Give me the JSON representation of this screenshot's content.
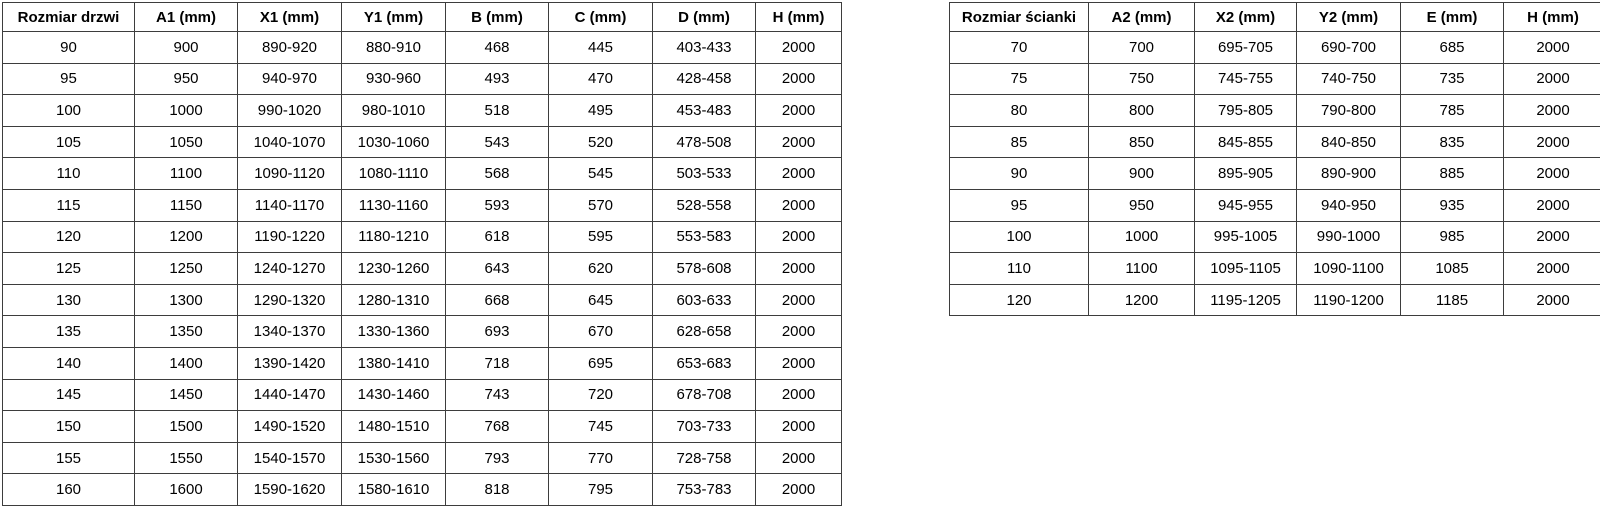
{
  "colors": {
    "background": "#ffffff",
    "border": "#3d3d3d",
    "text": "#000000"
  },
  "door_table": {
    "columns": [
      "Rozmiar drzwi",
      "A1 (mm)",
      "X1 (mm)",
      "Y1 (mm)",
      "B (mm)",
      "C (mm)",
      "D (mm)",
      "H (mm)"
    ],
    "rows": [
      [
        "90",
        "900",
        "890-920",
        "880-910",
        "468",
        "445",
        "403-433",
        "2000"
      ],
      [
        "95",
        "950",
        "940-970",
        "930-960",
        "493",
        "470",
        "428-458",
        "2000"
      ],
      [
        "100",
        "1000",
        "990-1020",
        "980-1010",
        "518",
        "495",
        "453-483",
        "2000"
      ],
      [
        "105",
        "1050",
        "1040-1070",
        "1030-1060",
        "543",
        "520",
        "478-508",
        "2000"
      ],
      [
        "110",
        "1100",
        "1090-1120",
        "1080-1110",
        "568",
        "545",
        "503-533",
        "2000"
      ],
      [
        "115",
        "1150",
        "1140-1170",
        "1130-1160",
        "593",
        "570",
        "528-558",
        "2000"
      ],
      [
        "120",
        "1200",
        "1190-1220",
        "1180-1210",
        "618",
        "595",
        "553-583",
        "2000"
      ],
      [
        "125",
        "1250",
        "1240-1270",
        "1230-1260",
        "643",
        "620",
        "578-608",
        "2000"
      ],
      [
        "130",
        "1300",
        "1290-1320",
        "1280-1310",
        "668",
        "645",
        "603-633",
        "2000"
      ],
      [
        "135",
        "1350",
        "1340-1370",
        "1330-1360",
        "693",
        "670",
        "628-658",
        "2000"
      ],
      [
        "140",
        "1400",
        "1390-1420",
        "1380-1410",
        "718",
        "695",
        "653-683",
        "2000"
      ],
      [
        "145",
        "1450",
        "1440-1470",
        "1430-1460",
        "743",
        "720",
        "678-708",
        "2000"
      ],
      [
        "150",
        "1500",
        "1490-1520",
        "1480-1510",
        "768",
        "745",
        "703-733",
        "2000"
      ],
      [
        "155",
        "1550",
        "1540-1570",
        "1530-1560",
        "793",
        "770",
        "728-758",
        "2000"
      ],
      [
        "160",
        "1600",
        "1590-1620",
        "1580-1610",
        "818",
        "795",
        "753-783",
        "2000"
      ]
    ]
  },
  "wall_table": {
    "columns": [
      "Rozmiar ścianki",
      "A2 (mm)",
      "X2 (mm)",
      "Y2 (mm)",
      "E (mm)",
      "H (mm)"
    ],
    "rows": [
      [
        "70",
        "700",
        "695-705",
        "690-700",
        "685",
        "2000"
      ],
      [
        "75",
        "750",
        "745-755",
        "740-750",
        "735",
        "2000"
      ],
      [
        "80",
        "800",
        "795-805",
        "790-800",
        "785",
        "2000"
      ],
      [
        "85",
        "850",
        "845-855",
        "840-850",
        "835",
        "2000"
      ],
      [
        "90",
        "900",
        "895-905",
        "890-900",
        "885",
        "2000"
      ],
      [
        "95",
        "950",
        "945-955",
        "940-950",
        "935",
        "2000"
      ],
      [
        "100",
        "1000",
        "995-1005",
        "990-1000",
        "985",
        "2000"
      ],
      [
        "110",
        "1100",
        "1095-1105",
        "1090-1100",
        "1085",
        "2000"
      ],
      [
        "120",
        "1200",
        "1195-1205",
        "1190-1200",
        "1185",
        "2000"
      ]
    ]
  }
}
